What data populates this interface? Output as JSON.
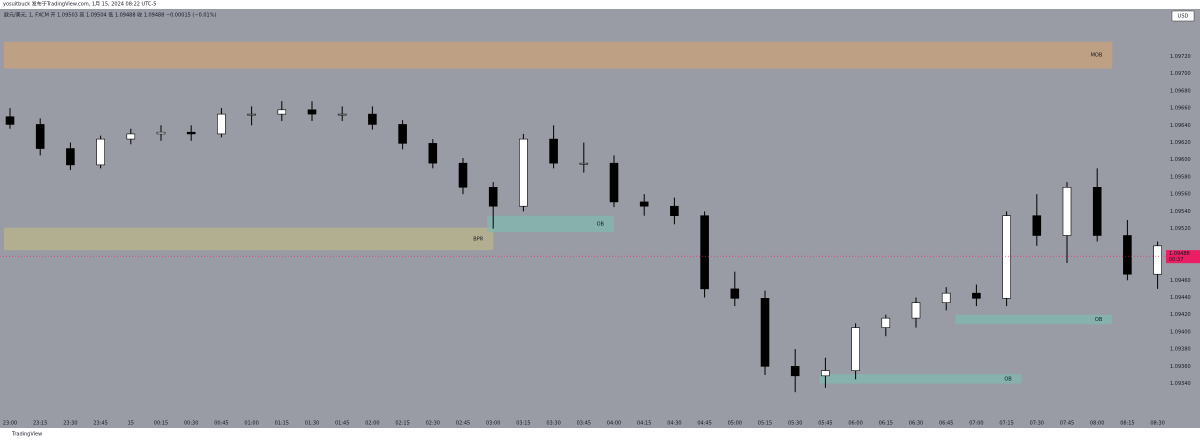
{
  "chart_data": {
    "type": "candlestick",
    "publisher": "yosuitbuck 发布于TradingView.com, 1月 15, 2024 08:22 UTC-5",
    "title": "欧元/美元, 1, FXCM  开 1.09503  高 1.09504  低 1.09488  收 1.09488  −0.00015 (−0.01%)",
    "currency": "USD",
    "brand": "TradingView",
    "categories": [
      "23:00",
      "23:15",
      "23:30",
      "23:45",
      "15",
      "00:15",
      "00:30",
      "00:45",
      "01:00",
      "01:15",
      "01:30",
      "01:45",
      "02:00",
      "02:15",
      "02:30",
      "02:45",
      "03:00",
      "03:15",
      "03:30",
      "03:45",
      "04:00",
      "04:15",
      "04:30",
      "04:45",
      "05:00",
      "05:15",
      "05:30",
      "05:45",
      "06:00",
      "06:15",
      "06:30",
      "06:45",
      "07:00",
      "07:15",
      "07:30",
      "07:45",
      "08:00",
      "08:15",
      "08:30"
    ],
    "open": [
      1.0965,
      1.09641,
      1.09613,
      1.09594,
      1.09624,
      1.0963,
      1.09632,
      1.0963,
      1.09653,
      1.09653,
      1.09658,
      1.09653,
      1.09653,
      1.09641,
      1.09619,
      1.09596,
      1.09568,
      1.09546,
      1.09624,
      1.09596,
      1.09596,
      1.09551,
      1.09546,
      1.09535,
      1.0945,
      1.09439,
      1.0936,
      1.09349,
      1.09355,
      1.09405,
      1.09416,
      1.09434,
      1.09445,
      1.09439,
      1.09535,
      1.09512,
      1.09568,
      1.09512,
      1.09467
    ],
    "high": [
      1.0966,
      1.09648,
      1.0962,
      1.09628,
      1.09636,
      1.0964,
      1.0964,
      1.0966,
      1.09662,
      1.09668,
      1.09668,
      1.09662,
      1.09662,
      1.09646,
      1.09624,
      1.09602,
      1.09574,
      1.0963,
      1.0964,
      1.0962,
      1.09605,
      1.0956,
      1.09556,
      1.0954,
      1.0947,
      1.09448,
      1.0938,
      1.0937,
      1.0941,
      1.0942,
      1.0944,
      1.09452,
      1.09455,
      1.0954,
      1.0956,
      1.09574,
      1.0959,
      1.0953,
      1.09505
    ],
    "low": [
      1.09636,
      1.09605,
      1.09588,
      1.0959,
      1.09618,
      1.09622,
      1.09622,
      1.09626,
      1.0964,
      1.09645,
      1.09645,
      1.09645,
      1.09635,
      1.09612,
      1.0959,
      1.0956,
      1.0952,
      1.0954,
      1.0959,
      1.09585,
      1.09545,
      1.09535,
      1.09525,
      1.0944,
      1.0943,
      1.0935,
      1.0933,
      1.09335,
      1.09345,
      1.09395,
      1.09405,
      1.09425,
      1.0943,
      1.0943,
      1.095,
      1.0948,
      1.09505,
      1.0946,
      1.0945
    ],
    "close": [
      1.09641,
      1.09613,
      1.09594,
      1.09624,
      1.0963,
      1.09632,
      1.0963,
      1.09653,
      1.09653,
      1.09658,
      1.09653,
      1.09653,
      1.09641,
      1.09619,
      1.09596,
      1.09568,
      1.09546,
      1.09624,
      1.09596,
      1.09596,
      1.09551,
      1.09546,
      1.09535,
      1.0945,
      1.09439,
      1.0936,
      1.09349,
      1.09355,
      1.09405,
      1.09416,
      1.09434,
      1.09445,
      1.09439,
      1.09535,
      1.09512,
      1.09568,
      1.09512,
      1.09467,
      1.095
    ],
    "up_color": "#ffffff",
    "down_color": "#000000",
    "ylim": [
      1.093,
      1.0976
    ],
    "yticks": [
      {
        "value": 1.0934,
        "label": "1.09340"
      },
      {
        "value": 1.0936,
        "label": "1.09360"
      },
      {
        "value": 1.0938,
        "label": "1.09380"
      },
      {
        "value": 1.094,
        "label": "1.09400"
      },
      {
        "value": 1.0942,
        "label": "1.09420"
      },
      {
        "value": 1.0944,
        "label": "1.09440"
      },
      {
        "value": 1.0946,
        "label": "1.09460"
      },
      {
        "value": 1.0952,
        "label": "1.09520"
      },
      {
        "value": 1.0954,
        "label": "1.09540"
      },
      {
        "value": 1.0956,
        "label": "1.09560"
      },
      {
        "value": 1.0958,
        "label": "1.09580"
      },
      {
        "value": 1.096,
        "label": "1.09600"
      },
      {
        "value": 1.0962,
        "label": "1.09620"
      },
      {
        "value": 1.0964,
        "label": "1.09640"
      },
      {
        "value": 1.0966,
        "label": "1.09660"
      },
      {
        "value": 1.0968,
        "label": "1.09680"
      },
      {
        "value": 1.097,
        "label": "1.09700"
      },
      {
        "value": 1.0972,
        "label": "1.09720"
      }
    ],
    "grid": false,
    "last_price": 1.09488,
    "countdown": "00:37",
    "last_color": "#e91e63",
    "zones": [
      {
        "label": "MOB",
        "top": 1.09737,
        "bottom": 1.09706,
        "from": 0,
        "to": 36.5,
        "color": "#c9a27a"
      },
      {
        "label": "BPR",
        "top": 1.09521,
        "bottom": 1.09495,
        "from": 0,
        "to": 16,
        "color": "#b8b68a"
      },
      {
        "label": "OB",
        "top": 1.09535,
        "bottom": 1.09516,
        "from": 16,
        "to": 20,
        "color": "#7fb8b0"
      },
      {
        "label": "OB",
        "top": 1.0942,
        "bottom": 1.09409,
        "from": 31.5,
        "to": 36.5,
        "color": "#7fb8b0"
      },
      {
        "label": "OB",
        "top": 1.09351,
        "bottom": 1.0934,
        "from": 27,
        "to": 33.5,
        "color": "#7fb8b0"
      }
    ]
  }
}
